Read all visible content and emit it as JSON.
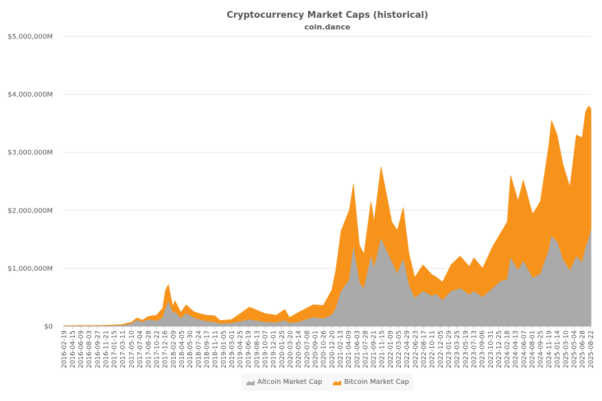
{
  "chart_data": {
    "type": "area",
    "stacked": true,
    "title": "Cryptocurrency Market Caps (historical)",
    "subtitle": "coin.dance",
    "ylim": [
      0,
      5000000
    ],
    "yticks": [
      0,
      1000000,
      2000000,
      3000000,
      4000000,
      5000000
    ],
    "ytick_labels": [
      "$0",
      "$1,000,000M",
      "$2,000,000M",
      "$3,000,000M",
      "$4,000,000M",
      "$5,000,000M"
    ],
    "xtick_labels": [
      "2016-02-19",
      "2016-04-15",
      "2016-06-09",
      "2016-08-03",
      "2016-09-27",
      "2016-11-21",
      "2017-01-15",
      "2017-03-11",
      "2017-05-10",
      "2017-07-04",
      "2017-08-28",
      "2017-10-22",
      "2017-12-16",
      "2018-02-09",
      "2018-04-05",
      "2018-05-30",
      "2018-07-24",
      "2018-09-17",
      "2018-11-11",
      "2019-01-05",
      "2019-03-01",
      "2019-04-25",
      "2019-06-19",
      "2019-08-13",
      "2019-10-07",
      "2019-12-01",
      "2020-01-25",
      "2020-03-20",
      "2020-05-14",
      "2020-07-08",
      "2020-09-01",
      "2020-10-26",
      "2020-12-20",
      "2021-02-13",
      "2021-04-09",
      "2021-06-03",
      "2021-07-28",
      "2021-09-21",
      "2021-11-15",
      "2022-01-09",
      "2022-03-05",
      "2022-04-29",
      "2022-06-23",
      "2022-08-17",
      "2022-10-11",
      "2022-12-05",
      "2023-01-29",
      "2023-03-25",
      "2023-05-19",
      "2023-07-13",
      "2023-09-06",
      "2023-10-31",
      "2023-12-25",
      "2024-02-18",
      "2024-04-13",
      "2024-06-07",
      "2024-08-01",
      "2024-09-25",
      "2024-11-19",
      "2025-01-14",
      "2025-03-10",
      "2025-05-04",
      "2025-06-28",
      "2025-08-22"
    ],
    "legend_position": "bottom-center",
    "grid": true,
    "series": [
      {
        "name": "Altcoin Market Cap",
        "color": "#aaaaaa",
        "points": [
          [
            "2016-02-19",
            2000
          ],
          [
            "2016-06-01",
            4000
          ],
          [
            "2016-11-01",
            5000
          ],
          [
            "2017-03-01",
            10000
          ],
          [
            "2017-05-10",
            40000
          ],
          [
            "2017-06-15",
            100000
          ],
          [
            "2017-07-20",
            70000
          ],
          [
            "2017-08-28",
            110000
          ],
          [
            "2017-10-22",
            90000
          ],
          [
            "2017-12-01",
            140000
          ],
          [
            "2017-12-20",
            300000
          ],
          [
            "2018-01-08",
            420000
          ],
          [
            "2018-02-06",
            220000
          ],
          [
            "2018-02-20",
            250000
          ],
          [
            "2018-04-01",
            130000
          ],
          [
            "2018-05-05",
            220000
          ],
          [
            "2018-06-25",
            140000
          ],
          [
            "2018-08-15",
            100000
          ],
          [
            "2018-09-17",
            80000
          ],
          [
            "2018-11-11",
            70000
          ],
          [
            "2018-12-15",
            40000
          ],
          [
            "2019-03-01",
            50000
          ],
          [
            "2019-06-26",
            110000
          ],
          [
            "2019-10-07",
            70000
          ],
          [
            "2019-12-20",
            60000
          ],
          [
            "2020-02-15",
            100000
          ],
          [
            "2020-03-16",
            50000
          ],
          [
            "2020-05-14",
            70000
          ],
          [
            "2020-08-20",
            150000
          ],
          [
            "2020-10-26",
            130000
          ],
          [
            "2020-12-20",
            190000
          ],
          [
            "2021-01-15",
            300000
          ],
          [
            "2021-02-20",
            600000
          ],
          [
            "2021-04-15",
            800000
          ],
          [
            "2021-05-12",
            1350000
          ],
          [
            "2021-06-20",
            750000
          ],
          [
            "2021-07-20",
            640000
          ],
          [
            "2021-09-05",
            1200000
          ],
          [
            "2021-09-25",
            1000000
          ],
          [
            "2021-11-10",
            1500000
          ],
          [
            "2022-01-20",
            1100000
          ],
          [
            "2022-02-25",
            900000
          ],
          [
            "2022-04-05",
            1150000
          ],
          [
            "2022-05-12",
            700000
          ],
          [
            "2022-06-20",
            480000
          ],
          [
            "2022-08-13",
            600000
          ],
          [
            "2022-10-11",
            520000
          ],
          [
            "2022-11-09",
            550000
          ],
          [
            "2022-12-20",
            440000
          ],
          [
            "2023-02-15",
            600000
          ],
          [
            "2023-04-15",
            650000
          ],
          [
            "2023-06-15",
            540000
          ],
          [
            "2023-07-15",
            600000
          ],
          [
            "2023-09-10",
            500000
          ],
          [
            "2023-11-15",
            650000
          ],
          [
            "2024-01-10",
            780000
          ],
          [
            "2024-02-20",
            800000
          ],
          [
            "2024-03-13",
            1170000
          ],
          [
            "2024-05-01",
            960000
          ],
          [
            "2024-06-05",
            1120000
          ],
          [
            "2024-08-05",
            830000
          ],
          [
            "2024-09-25",
            900000
          ],
          [
            "2024-11-19",
            1300000
          ],
          [
            "2024-12-08",
            1550000
          ],
          [
            "2025-01-14",
            1450000
          ],
          [
            "2025-02-20",
            1150000
          ],
          [
            "2025-04-08",
            950000
          ],
          [
            "2025-05-20",
            1200000
          ],
          [
            "2025-06-28",
            1100000
          ],
          [
            "2025-07-20",
            1350000
          ],
          [
            "2025-08-10",
            1500000
          ],
          [
            "2025-08-25",
            1650000
          ]
        ]
      },
      {
        "name": "Bitcoin Market Cap",
        "color": "#f7931a",
        "points": [
          [
            "2016-02-19",
            6000
          ],
          [
            "2016-06-01",
            10000
          ],
          [
            "2016-11-01",
            12000
          ],
          [
            "2017-03-01",
            18000
          ],
          [
            "2017-05-10",
            30000
          ],
          [
            "2017-06-15",
            45000
          ],
          [
            "2017-07-20",
            35000
          ],
          [
            "2017-08-28",
            60000
          ],
          [
            "2017-10-22",
            100000
          ],
          [
            "2017-12-01",
            170000
          ],
          [
            "2017-12-20",
            320000
          ],
          [
            "2018-01-08",
            300000
          ],
          [
            "2018-02-06",
            120000
          ],
          [
            "2018-02-20",
            190000
          ],
          [
            "2018-04-01",
            110000
          ],
          [
            "2018-05-05",
            150000
          ],
          [
            "2018-06-25",
            110000
          ],
          [
            "2018-08-15",
            110000
          ],
          [
            "2018-09-17",
            110000
          ],
          [
            "2018-11-11",
            110000
          ],
          [
            "2018-12-15",
            60000
          ],
          [
            "2019-03-01",
            65000
          ],
          [
            "2019-06-26",
            220000
          ],
          [
            "2019-10-07",
            150000
          ],
          [
            "2019-12-20",
            130000
          ],
          [
            "2020-02-15",
            190000
          ],
          [
            "2020-03-16",
            100000
          ],
          [
            "2020-05-14",
            170000
          ],
          [
            "2020-08-20",
            220000
          ],
          [
            "2020-10-26",
            230000
          ],
          [
            "2020-12-20",
            430000
          ],
          [
            "2021-01-15",
            650000
          ],
          [
            "2021-02-20",
            1050000
          ],
          [
            "2021-04-15",
            1200000
          ],
          [
            "2021-05-12",
            1100000
          ],
          [
            "2021-06-20",
            650000
          ],
          [
            "2021-07-20",
            600000
          ],
          [
            "2021-09-05",
            950000
          ],
          [
            "2021-09-25",
            800000
          ],
          [
            "2021-11-10",
            1250000
          ],
          [
            "2022-01-20",
            700000
          ],
          [
            "2022-02-25",
            750000
          ],
          [
            "2022-04-05",
            900000
          ],
          [
            "2022-05-12",
            560000
          ],
          [
            "2022-06-20",
            360000
          ],
          [
            "2022-08-13",
            460000
          ],
          [
            "2022-10-11",
            370000
          ],
          [
            "2022-11-09",
            300000
          ],
          [
            "2022-12-20",
            320000
          ],
          [
            "2023-02-15",
            460000
          ],
          [
            "2023-04-15",
            560000
          ],
          [
            "2023-06-15",
            490000
          ],
          [
            "2023-07-15",
            580000
          ],
          [
            "2023-09-10",
            500000
          ],
          [
            "2023-11-15",
            720000
          ],
          [
            "2024-01-10",
            840000
          ],
          [
            "2024-02-20",
            1000000
          ],
          [
            "2024-03-13",
            1430000
          ],
          [
            "2024-05-01",
            1200000
          ],
          [
            "2024-06-05",
            1400000
          ],
          [
            "2024-08-05",
            1100000
          ],
          [
            "2024-09-25",
            1250000
          ],
          [
            "2024-11-19",
            1800000
          ],
          [
            "2024-12-08",
            2000000
          ],
          [
            "2025-01-14",
            1850000
          ],
          [
            "2025-02-20",
            1650000
          ],
          [
            "2025-04-08",
            1450000
          ],
          [
            "2025-05-20",
            2100000
          ],
          [
            "2025-06-28",
            2150000
          ],
          [
            "2025-07-20",
            2350000
          ],
          [
            "2025-08-10",
            2300000
          ],
          [
            "2025-08-25",
            2100000
          ]
        ]
      }
    ]
  }
}
